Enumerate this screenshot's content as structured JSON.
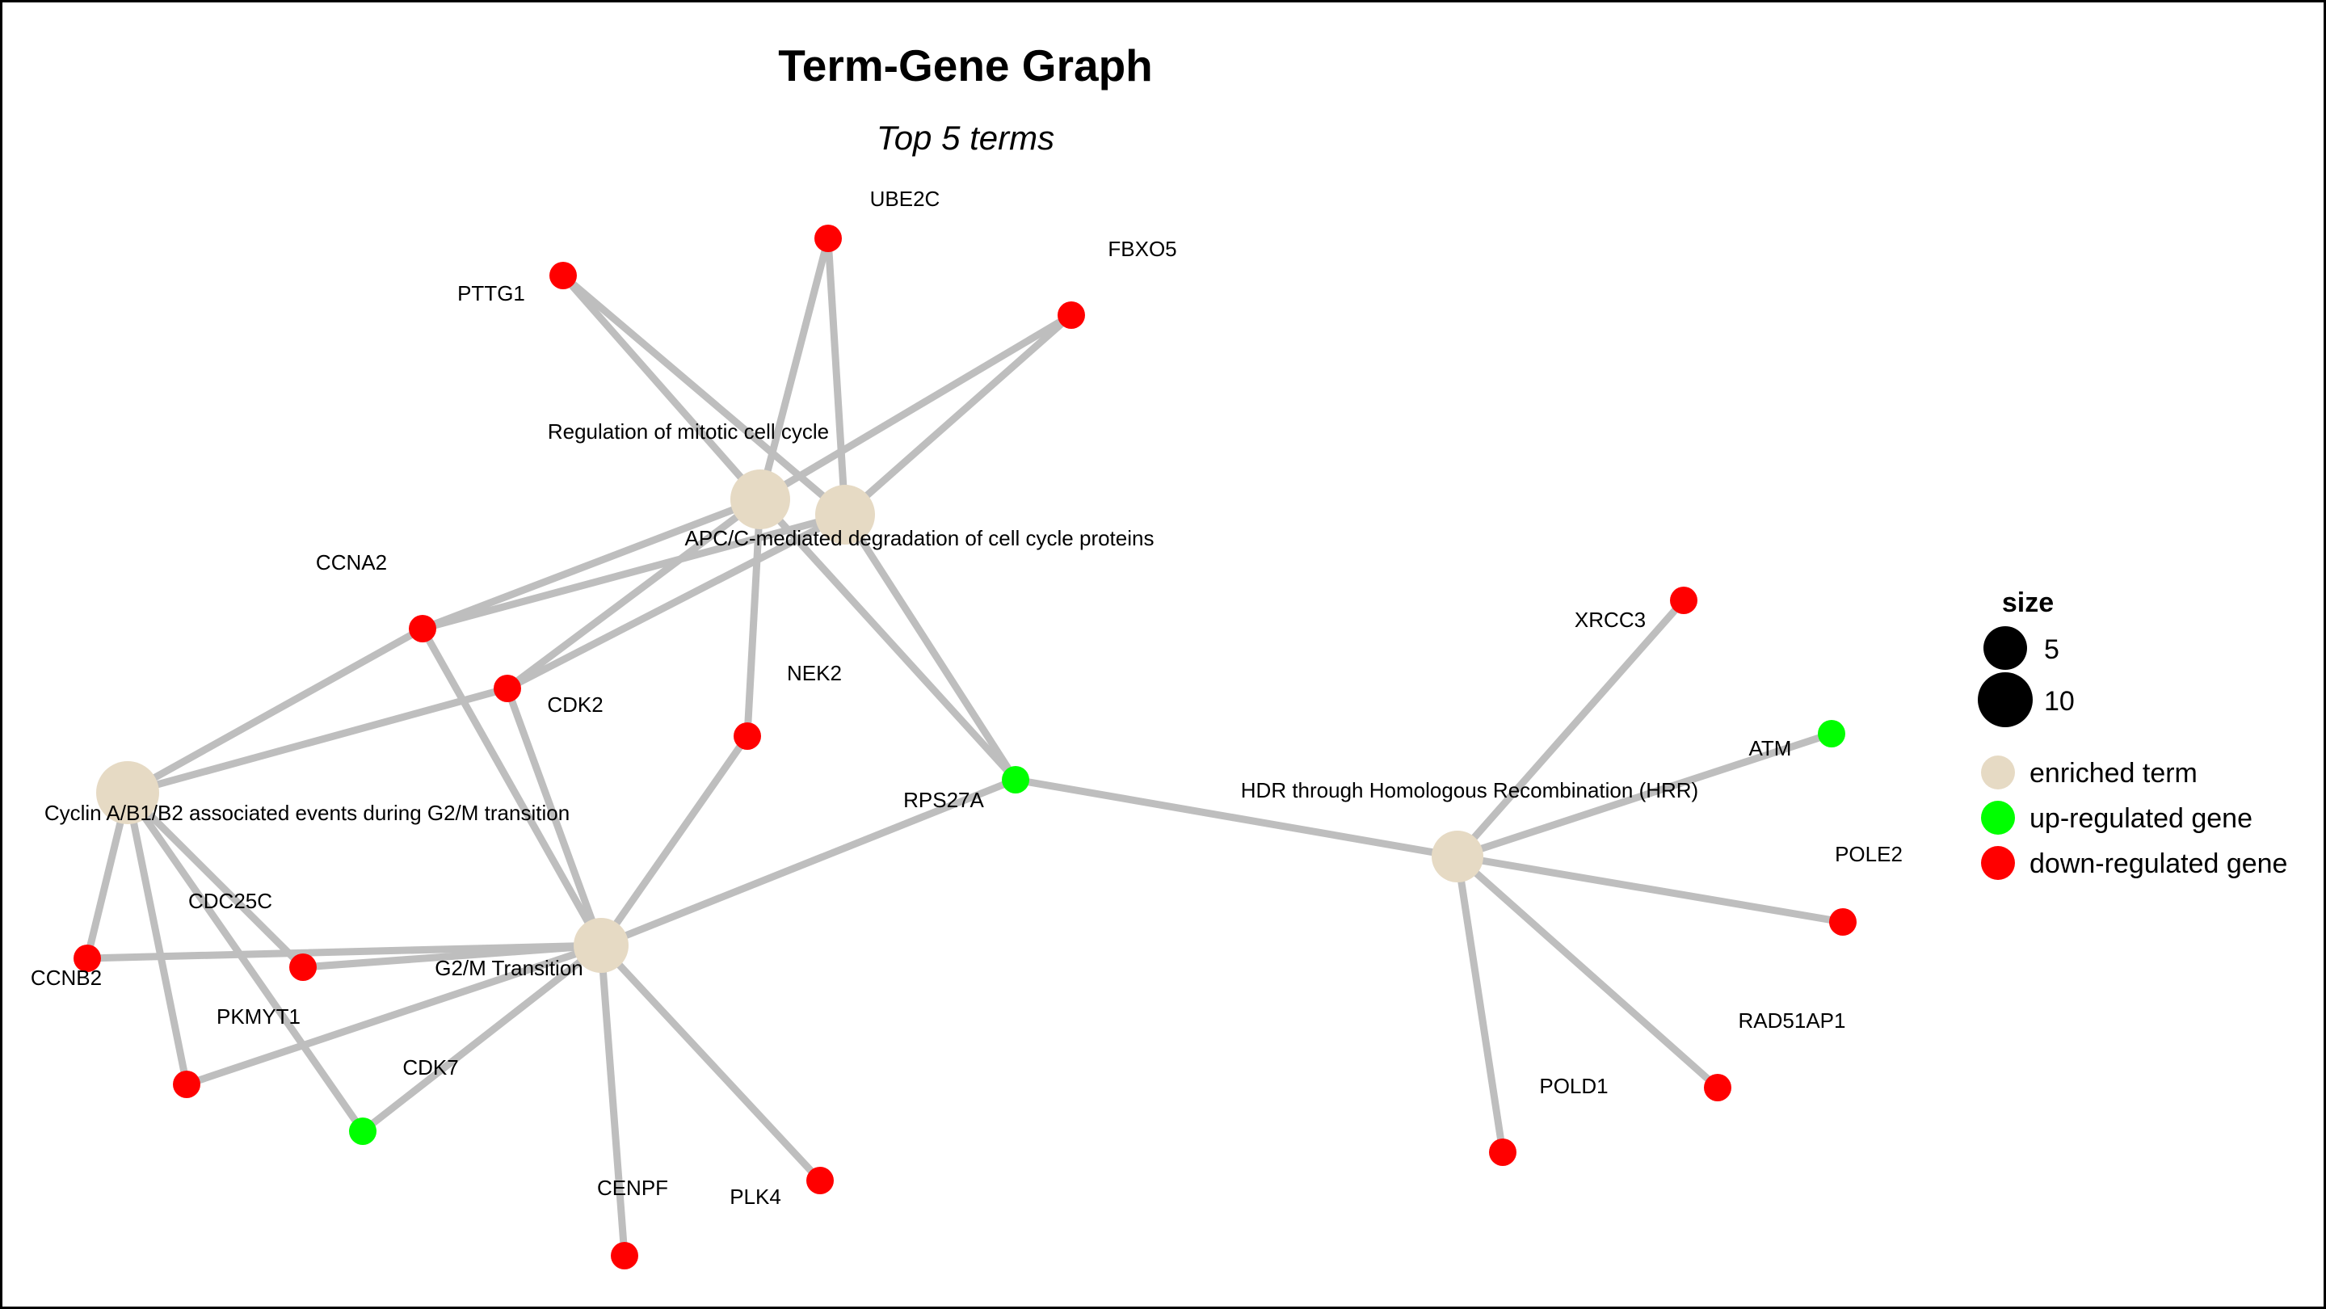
{
  "title": "Term-Gene Graph",
  "subtitle": "Top 5 terms",
  "colors": {
    "term": "#E6DAC4",
    "up": "#00FF00",
    "down": "#FF0000",
    "edge": "#BEBEBE"
  },
  "legend": {
    "size_title": "size",
    "size_items": [
      "5",
      "10"
    ],
    "category_items": [
      {
        "label": "enriched term",
        "color_key": "term"
      },
      {
        "label": "up-regulated gene",
        "color_key": "up"
      },
      {
        "label": "down-regulated gene",
        "color_key": "down"
      }
    ]
  },
  "nodes": [
    {
      "id": "reg",
      "label": "Regulation of mitotic cell cycle",
      "category": "term"
    },
    {
      "id": "apc",
      "label": "APC/C-mediated degradation of cell cycle proteins",
      "category": "term"
    },
    {
      "id": "cyc",
      "label": "Cyclin A/B1/B2 associated events during G2/M transition",
      "category": "term"
    },
    {
      "id": "g2m",
      "label": "G2/M Transition",
      "category": "term"
    },
    {
      "id": "hdr",
      "label": "HDR through Homologous Recombination (HRR)",
      "category": "term"
    },
    {
      "id": "UBE2C",
      "label": "UBE2C",
      "category": "down"
    },
    {
      "id": "FBXO5",
      "label": "FBXO5",
      "category": "down"
    },
    {
      "id": "PTTG1",
      "label": "PTTG1",
      "category": "down"
    },
    {
      "id": "CCNA2",
      "label": "CCNA2",
      "category": "down"
    },
    {
      "id": "CDK2",
      "label": "CDK2",
      "category": "down"
    },
    {
      "id": "NEK2",
      "label": "NEK2",
      "category": "down"
    },
    {
      "id": "RPS27A",
      "label": "RPS27A",
      "category": "up"
    },
    {
      "id": "CDC25C",
      "label": "CDC25C",
      "category": "down"
    },
    {
      "id": "CCNB2",
      "label": "CCNB2",
      "category": "down"
    },
    {
      "id": "PKMYT1",
      "label": "PKMYT1",
      "category": "down"
    },
    {
      "id": "CDK7",
      "label": "CDK7",
      "category": "up"
    },
    {
      "id": "CENPF",
      "label": "CENPF",
      "category": "down"
    },
    {
      "id": "PLK4",
      "label": "PLK4",
      "category": "down"
    },
    {
      "id": "XRCC3",
      "label": "XRCC3",
      "category": "down"
    },
    {
      "id": "ATM",
      "label": "ATM",
      "category": "up"
    },
    {
      "id": "POLE2",
      "label": "POLE2",
      "category": "down"
    },
    {
      "id": "RAD51AP1",
      "label": "RAD51AP1",
      "category": "down"
    },
    {
      "id": "POLD1",
      "label": "POLD1",
      "category": "down"
    }
  ],
  "edges": [
    [
      "reg",
      "PTTG1"
    ],
    [
      "reg",
      "UBE2C"
    ],
    [
      "reg",
      "FBXO5"
    ],
    [
      "reg",
      "CCNA2"
    ],
    [
      "reg",
      "CDK2"
    ],
    [
      "reg",
      "NEK2"
    ],
    [
      "reg",
      "RPS27A"
    ],
    [
      "apc",
      "PTTG1"
    ],
    [
      "apc",
      "UBE2C"
    ],
    [
      "apc",
      "FBXO5"
    ],
    [
      "apc",
      "CCNA2"
    ],
    [
      "apc",
      "CDK2"
    ],
    [
      "apc",
      "RPS27A"
    ],
    [
      "cyc",
      "CCNA2"
    ],
    [
      "cyc",
      "CDK2"
    ],
    [
      "cyc",
      "CCNB2"
    ],
    [
      "cyc",
      "CDC25C"
    ],
    [
      "cyc",
      "PKMYT1"
    ],
    [
      "cyc",
      "CDK7"
    ],
    [
      "g2m",
      "CCNA2"
    ],
    [
      "g2m",
      "CDK2"
    ],
    [
      "g2m",
      "NEK2"
    ],
    [
      "g2m",
      "RPS27A"
    ],
    [
      "g2m",
      "CDC25C"
    ],
    [
      "g2m",
      "CCNB2"
    ],
    [
      "g2m",
      "PKMYT1"
    ],
    [
      "g2m",
      "CDK7"
    ],
    [
      "g2m",
      "CENPF"
    ],
    [
      "g2m",
      "PLK4"
    ],
    [
      "hdr",
      "RPS27A"
    ],
    [
      "hdr",
      "XRCC3"
    ],
    [
      "hdr",
      "ATM"
    ],
    [
      "hdr",
      "POLE2"
    ],
    [
      "hdr",
      "RAD51AP1"
    ],
    [
      "hdr",
      "POLD1"
    ]
  ]
}
